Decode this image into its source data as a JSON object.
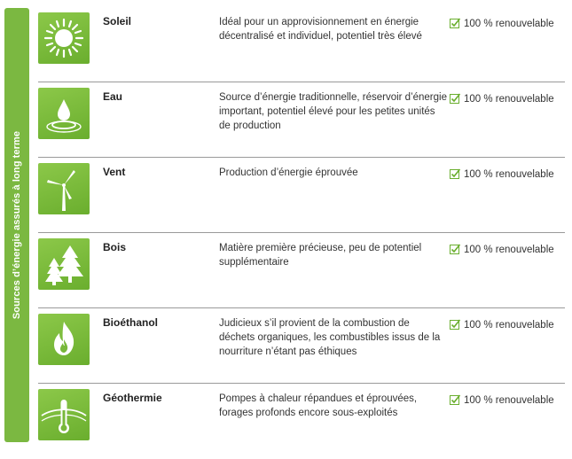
{
  "side_label": "Sources d’énergie assurés à long terme",
  "colors": {
    "accent": "#7bb841",
    "icon_bg": "#78b83a",
    "check": "#6aae2e"
  },
  "rows": [
    {
      "icon": "sun-icon",
      "name": "Soleil",
      "desc": "Idéal pour un approvisionnement en énergie décentralisé et individuel, potentiel très élevé",
      "status": "100 % renouvelable"
    },
    {
      "icon": "water-drop-icon",
      "name": "Eau",
      "desc": "Source d’énergie traditionnelle, réservoir d’énergie important, potentiel élevé pour les petites unités de production",
      "status": "100 % renouvelable"
    },
    {
      "icon": "wind-turbine-icon",
      "name": "Vent",
      "desc": "Production d’énergie éprouvée",
      "status": "100 % renouvelable"
    },
    {
      "icon": "trees-icon",
      "name": "Bois",
      "desc": "Matière première précieuse, peu de potentiel supplémentaire",
      "status": "100 % renouvelable"
    },
    {
      "icon": "flame-icon",
      "name": "Bioéthanol",
      "desc": "Judicieux s’il provient de la combustion de déchets organiques, les combustibles issus de la nourriture n’étant pas éthiques",
      "status": "100 % renouvelable"
    },
    {
      "icon": "thermometer-icon",
      "name": "Géothermie",
      "desc": "Pompes à chaleur répandues et éprouvées, forages profonds encore sous-exploités",
      "status": "100 % renouvelable"
    }
  ]
}
